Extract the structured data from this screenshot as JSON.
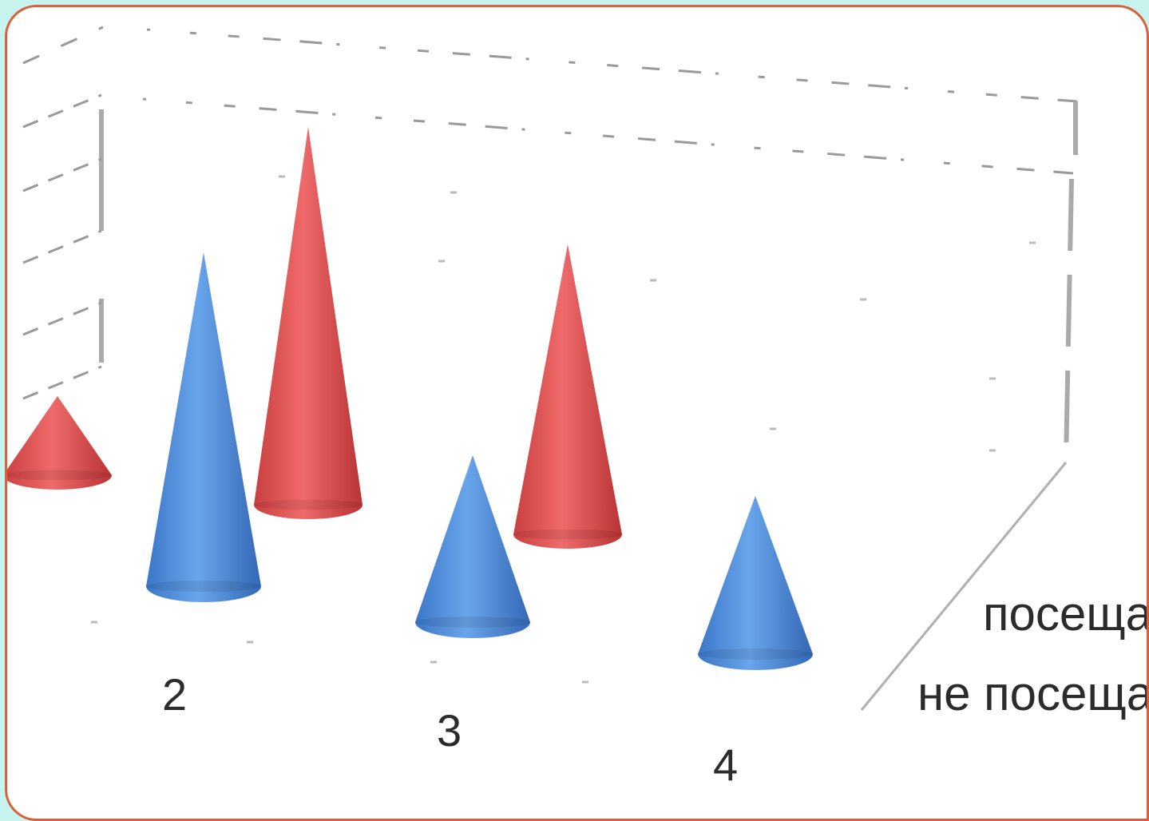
{
  "chart_data": {
    "type": "bar",
    "style": "3d-cone",
    "categories": [
      "",
      "2",
      "3",
      "4"
    ],
    "series": [
      {
        "name": "посещают",
        "color": "#e05a5a",
        "values": [
          1.8,
          8.6,
          6.6,
          null
        ]
      },
      {
        "name": "не посещают",
        "color": "#4f8fdc",
        "values": [
          null,
          7.6,
          3.8,
          3.6
        ]
      }
    ],
    "ylim": [
      0,
      10
    ],
    "grid": true,
    "legend": "right",
    "title": "",
    "xlabel": "",
    "ylabel": ""
  },
  "colors": {
    "background": "#c8f4f0",
    "card": "#ffffff",
    "card_border": "#d9603a",
    "grid": "#9a9a9a"
  }
}
